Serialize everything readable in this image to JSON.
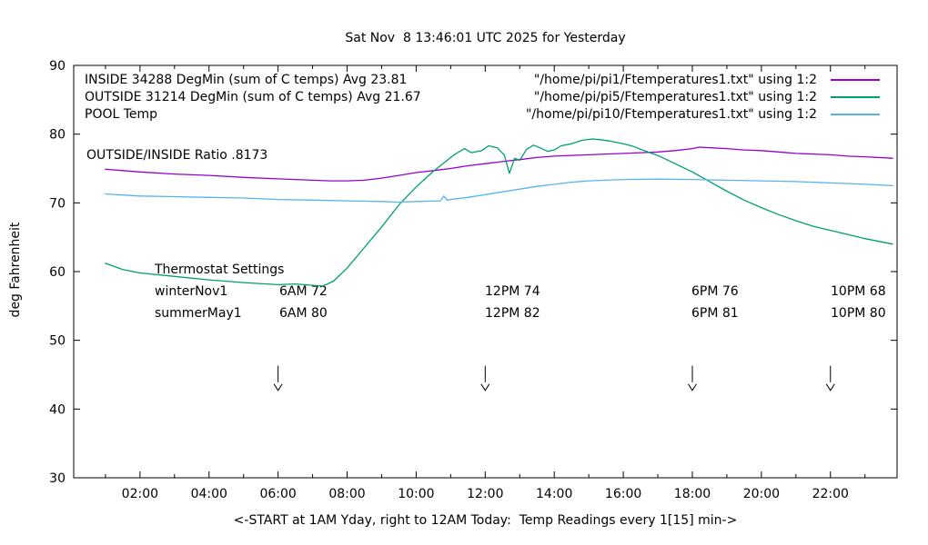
{
  "title": "Sat Nov  8 13:46:01 UTC 2025 for Yesterday",
  "legend": {
    "items": [
      {
        "label": "INSIDE 34288 DegMin (sum of C temps) Avg 23.81",
        "file": "\"/home/pi/pi1/Ftemperatures1.txt\" using 1:2",
        "color": "#9400d3"
      },
      {
        "label": "OUTSIDE 31214 DegMin (sum of C temps) Avg 21.67",
        "file": "\"/home/pi/pi5/Ftemperatures1.txt\" using 1:2",
        "color": "#009e73"
      },
      {
        "label": "POOL Temp",
        "file": "\"/home/pi/pi10/Ftemperatures1.txt\" using 1:2",
        "color": "#56b4e9"
      }
    ]
  },
  "annotations": {
    "ratio": "OUTSIDE/INSIDE Ratio .8173",
    "thermostat": {
      "title": "Thermostat Settings",
      "rows": [
        {
          "name": "winterNov1",
          "c1": "6AM 72",
          "c2": "12PM 74",
          "c3": "6PM 76",
          "c4": "10PM 68"
        },
        {
          "name": "summerMay1",
          "c1": "6AM 80",
          "c2": "12PM 82",
          "c3": "6PM 81",
          "c4": "10PM 80"
        }
      ]
    },
    "arrows": {
      "hours": [
        6,
        12,
        18,
        22
      ],
      "from_F": 46.3,
      "to_F": 43.9
    }
  },
  "chart_data": {
    "type": "line",
    "title": "Sat Nov  8 13:46:01 UTC 2025 for Yesterday",
    "xlabel": "<-START at 1AM Yday, right to 12AM Today:  Temp Readings every 1[15] min->",
    "ylabel": "deg Fahrenheit",
    "xlim": [
      0.08,
      23.93
    ],
    "ylim": [
      30,
      90
    ],
    "grid": false,
    "legend_position": "top-inside",
    "x_major_ticks": [
      {
        "t": 2,
        "label": "02:00"
      },
      {
        "t": 4,
        "label": "04:00"
      },
      {
        "t": 6,
        "label": "06:00"
      },
      {
        "t": 8,
        "label": "08:00"
      },
      {
        "t": 10,
        "label": "10:00"
      },
      {
        "t": 12,
        "label": "12:00"
      },
      {
        "t": 14,
        "label": "14:00"
      },
      {
        "t": 16,
        "label": "16:00"
      },
      {
        "t": 18,
        "label": "18:00"
      },
      {
        "t": 20,
        "label": "20:00"
      },
      {
        "t": 22,
        "label": "22:00"
      }
    ],
    "x_minor_ticks": [
      1,
      3,
      5,
      7,
      9,
      11,
      13,
      15,
      17,
      19,
      21,
      23
    ],
    "y_ticks": [
      30,
      40,
      50,
      60,
      70,
      80,
      90
    ],
    "series": [
      {
        "name": "INSIDE",
        "color": "#9400d3",
        "x": [
          1,
          2,
          3,
          4,
          5,
          6,
          7,
          7.5,
          8,
          8.5,
          9,
          9.5,
          10,
          10.5,
          11,
          11.5,
          12,
          12.5,
          13,
          13.5,
          14,
          14.5,
          15,
          15.5,
          16,
          16.5,
          17,
          17.5,
          18,
          18.2,
          18.6,
          19,
          19.5,
          20,
          20.5,
          21,
          21.5,
          22,
          22.5,
          23,
          23.8
        ],
        "values": [
          74.9,
          74.5,
          74.2,
          74.0,
          73.7,
          73.5,
          73.3,
          73.2,
          73.2,
          73.3,
          73.6,
          74.0,
          74.4,
          74.7,
          75.0,
          75.4,
          75.7,
          76.0,
          76.3,
          76.6,
          76.8,
          76.9,
          77.0,
          77.1,
          77.2,
          77.3,
          77.4,
          77.6,
          77.9,
          78.1,
          78.0,
          77.9,
          77.7,
          77.6,
          77.4,
          77.2,
          77.1,
          77.0,
          76.8,
          76.7,
          76.5
        ]
      },
      {
        "name": "OUTSIDE",
        "color": "#009e73",
        "x": [
          1,
          1.5,
          2,
          3,
          4,
          5,
          6,
          6.5,
          7,
          7.3,
          7.6,
          8,
          8.5,
          9,
          9.5,
          10,
          10.5,
          10.9,
          11.1,
          11.4,
          11.6,
          11.9,
          12.1,
          12.35,
          12.55,
          12.7,
          12.85,
          13,
          13.2,
          13.4,
          13.6,
          13.8,
          14,
          14.2,
          14.5,
          14.8,
          15.1,
          15.3,
          15.6,
          16,
          16.3,
          16.6,
          17,
          17.5,
          18,
          18.5,
          19,
          19.5,
          20,
          20.5,
          21,
          21.5,
          22,
          22.5,
          23,
          23.4,
          23.8
        ],
        "values": [
          61.2,
          60.3,
          59.8,
          59.3,
          58.8,
          58.4,
          58.1,
          58.2,
          58.0,
          57.9,
          58.6,
          60.5,
          63.5,
          66.5,
          69.7,
          72.3,
          74.6,
          76.2,
          77.0,
          77.9,
          77.3,
          77.6,
          78.3,
          78.0,
          77.0,
          74.3,
          76.5,
          76.2,
          77.8,
          78.4,
          78.0,
          77.5,
          77.7,
          78.3,
          78.6,
          79.1,
          79.3,
          79.2,
          79.0,
          78.6,
          78.2,
          77.6,
          76.9,
          75.7,
          74.5,
          73.1,
          71.7,
          70.4,
          69.3,
          68.3,
          67.4,
          66.6,
          66.0,
          65.4,
          64.8,
          64.4,
          64.0
        ]
      },
      {
        "name": "POOL",
        "color": "#56b4e9",
        "x": [
          1,
          2,
          3,
          4,
          5,
          6,
          7,
          8,
          9,
          9.5,
          10,
          10.7,
          10.8,
          10.9,
          11,
          11.5,
          12,
          12.5,
          13,
          13.5,
          14,
          14.5,
          15,
          15.5,
          16,
          17,
          18,
          19,
          20,
          21,
          22,
          23,
          23.8
        ],
        "values": [
          71.3,
          71.0,
          70.9,
          70.8,
          70.7,
          70.5,
          70.4,
          70.3,
          70.2,
          70.1,
          70.2,
          70.3,
          71.0,
          70.4,
          70.5,
          70.8,
          71.2,
          71.6,
          72.0,
          72.4,
          72.7,
          73.0,
          73.2,
          73.3,
          73.4,
          73.45,
          73.4,
          73.3,
          73.2,
          73.1,
          72.9,
          72.7,
          72.5
        ]
      }
    ]
  }
}
